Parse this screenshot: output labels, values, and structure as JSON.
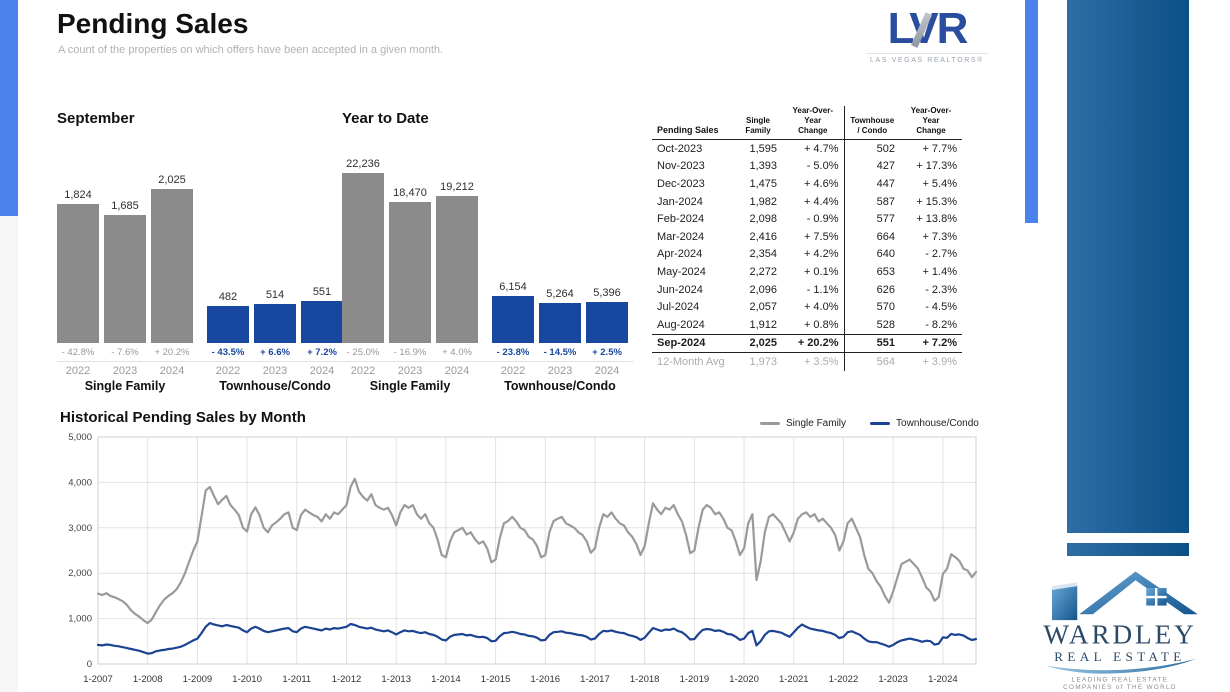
{
  "page": {
    "title": "Pending Sales",
    "subtitle": "A count of the properties on which offers have been accepted in a given month."
  },
  "lvr_logo": {
    "text": "LVR",
    "tagline": "LAS VEGAS REALTORS®"
  },
  "colors": {
    "bar_gray": "#8b8b8b",
    "bar_blue": "#17479e",
    "line_gray": "#9a9a9a",
    "line_blue": "#1b4392",
    "accent_strip": "#4b82ec",
    "rail_gradient_start": "#2d6ea5",
    "rail_gradient_end": "#0b5086"
  },
  "chart_data": [
    {
      "type": "bar",
      "title": "September",
      "categories": [
        "2022",
        "2023",
        "2024"
      ],
      "groups": [
        {
          "label": "Single Family",
          "color": "#8b8b8b",
          "change_style": "gray",
          "values": [
            1824,
            1685,
            2025
          ],
          "changes": [
            "- 42.8%",
            "- 7.6%",
            "+ 20.2%"
          ]
        },
        {
          "label": "Townhouse/Condo",
          "color": "#17479e",
          "change_style": "blue",
          "values": [
            482,
            514,
            551
          ],
          "changes": [
            "- 43.5%",
            "+ 6.6%",
            "+ 7.2%"
          ]
        }
      ]
    },
    {
      "type": "bar",
      "title": "Year to Date",
      "categories": [
        "2022",
        "2023",
        "2024"
      ],
      "groups": [
        {
          "label": "Single Family",
          "color": "#8b8b8b",
          "change_style": "gray",
          "values": [
            22236,
            18470,
            19212
          ],
          "changes": [
            "- 25.0%",
            "- 16.9%",
            "+ 4.0%"
          ]
        },
        {
          "label": "Townhouse/Condo",
          "color": "#17479e",
          "change_style": "blue",
          "values": [
            6154,
            5264,
            5396
          ],
          "changes": [
            "- 23.8%",
            "- 14.5%",
            "+ 2.5%"
          ]
        }
      ]
    },
    {
      "type": "line",
      "title": "Historical Pending Sales by Month",
      "ylim": [
        0,
        5000
      ],
      "yticks": [
        "0",
        "1,000",
        "2,000",
        "3,000",
        "4,000",
        "5,000"
      ],
      "xticks": [
        "1-2007",
        "1-2008",
        "1-2009",
        "1-2010",
        "1-2011",
        "1-2012",
        "1-2013",
        "1-2014",
        "1-2015",
        "1-2016",
        "1-2017",
        "1-2018",
        "1-2019",
        "1-2020",
        "1-2021",
        "1-2022",
        "1-2023",
        "1-2024"
      ],
      "months_start": "2007-01",
      "months_end": "2024-09",
      "grid": true,
      "legend_position": "top-right",
      "series": [
        {
          "name": "Single Family",
          "color": "#9a9a9a",
          "values": [
            1550,
            1520,
            1560,
            1500,
            1470,
            1430,
            1380,
            1300,
            1180,
            1100,
            1040,
            960,
            900,
            980,
            1150,
            1300,
            1420,
            1500,
            1560,
            1650,
            1800,
            2000,
            2250,
            2500,
            2700,
            3250,
            3820,
            3900,
            3700,
            3520,
            3620,
            3700,
            3500,
            3400,
            3280,
            3000,
            2920,
            3300,
            3450,
            3280,
            3000,
            2900,
            3050,
            3120,
            3200,
            3300,
            3340,
            3000,
            2950,
            3280,
            3400,
            3340,
            3280,
            3240,
            3140,
            3300,
            3200,
            3340,
            3300,
            3400,
            3500,
            3900,
            4080,
            3800,
            3680,
            3600,
            3740,
            3500,
            3440,
            3400,
            3440,
            3280,
            3050,
            3340,
            3500,
            3440,
            3500,
            3300,
            3200,
            3300,
            3100,
            3000,
            2740,
            2400,
            2350,
            2700,
            2900,
            2950,
            3000,
            2850,
            2900,
            2750,
            2650,
            2700,
            2540,
            2240,
            2300,
            2760,
            3100,
            3150,
            3240,
            3140,
            3000,
            2950,
            2800,
            2740,
            2600,
            2350,
            2400,
            2900,
            3150,
            3200,
            3240,
            3100,
            3050,
            3000,
            2900,
            2840,
            2700,
            2450,
            2550,
            3000,
            3300,
            3240,
            3340,
            3200,
            3100,
            3050,
            2900,
            2800,
            2640,
            2400,
            2600,
            3100,
            3540,
            3400,
            3300,
            3440,
            3400,
            3500,
            3300,
            3140,
            2840,
            2440,
            2500,
            3000,
            3400,
            3500,
            3440,
            3300,
            3340,
            3200,
            3000,
            2940,
            2700,
            2400,
            2550,
            3100,
            3300,
            1850,
            2250,
            2900,
            3240,
            3300,
            3200,
            3100,
            2900,
            2700,
            2900,
            3200,
            3300,
            3340,
            3240,
            3300,
            3140,
            3200,
            3100,
            3000,
            2840,
            2500,
            2700,
            3100,
            3200,
            3000,
            2800,
            2400,
            2100,
            2000,
            1824,
            1700,
            1500,
            1350,
            1600,
            1900,
            2200,
            2250,
            2300,
            2200,
            2100,
            1900,
            1685,
            1595,
            1393,
            1475,
            1982,
            2098,
            2416,
            2354,
            2272,
            2096,
            2057,
            1912,
            2025
          ]
        },
        {
          "name": "Townhouse/Condo",
          "color": "#1b4392",
          "values": [
            420,
            410,
            430,
            420,
            400,
            390,
            370,
            350,
            330,
            310,
            290,
            260,
            230,
            240,
            280,
            300,
            310,
            330,
            340,
            360,
            380,
            420,
            470,
            520,
            560,
            680,
            820,
            900,
            870,
            850,
            830,
            860,
            840,
            820,
            800,
            740,
            700,
            780,
            820,
            780,
            730,
            700,
            720,
            740,
            760,
            780,
            790,
            720,
            700,
            780,
            820,
            800,
            780,
            760,
            740,
            780,
            760,
            790,
            780,
            800,
            820,
            880,
            860,
            820,
            800,
            780,
            800,
            760,
            740,
            720,
            740,
            700,
            650,
            700,
            740,
            720,
            730,
            700,
            680,
            700,
            660,
            640,
            600,
            540,
            520,
            600,
            640,
            650,
            660,
            630,
            640,
            610,
            590,
            600,
            570,
            500,
            510,
            610,
            680,
            690,
            710,
            690,
            660,
            650,
            620,
            610,
            580,
            520,
            530,
            640,
            700,
            710,
            720,
            690,
            680,
            660,
            640,
            630,
            600,
            540,
            560,
            660,
            730,
            720,
            740,
            710,
            690,
            680,
            640,
            620,
            590,
            530,
            580,
            690,
            790,
            760,
            730,
            760,
            750,
            780,
            730,
            700,
            630,
            540,
            550,
            660,
            750,
            770,
            760,
            730,
            740,
            710,
            660,
            650,
            600,
            530,
            560,
            680,
            730,
            410,
            500,
            640,
            720,
            730,
            710,
            690,
            640,
            600,
            700,
            800,
            870,
            820,
            780,
            760,
            740,
            730,
            700,
            680,
            640,
            570,
            600,
            700,
            720,
            680,
            640,
            560,
            500,
            480,
            482,
            450,
            420,
            380,
            420,
            480,
            520,
            540,
            560,
            540,
            520,
            490,
            514,
            502,
            427,
            447,
            587,
            577,
            664,
            640,
            653,
            626,
            570,
            528,
            551
          ]
        }
      ]
    }
  ],
  "table": {
    "headers": [
      [
        "Pending Sales"
      ],
      [
        "Single",
        "Family"
      ],
      [
        "Year-Over-Year",
        "Change"
      ],
      [
        "Townhouse",
        "/ Condo"
      ],
      [
        "Year-Over-Year",
        "Change"
      ]
    ],
    "rows": [
      [
        "Oct-2023",
        "1,595",
        "+ 4.7%",
        "502",
        "+ 7.7%"
      ],
      [
        "Nov-2023",
        "1,393",
        "- 5.0%",
        "427",
        "+ 17.3%"
      ],
      [
        "Dec-2023",
        "1,475",
        "+ 4.6%",
        "447",
        "+ 5.4%"
      ],
      [
        "Jan-2024",
        "1,982",
        "+ 4.4%",
        "587",
        "+ 15.3%"
      ],
      [
        "Feb-2024",
        "2,098",
        "- 0.9%",
        "577",
        "+ 13.8%"
      ],
      [
        "Mar-2024",
        "2,416",
        "+ 7.5%",
        "664",
        "+ 7.3%"
      ],
      [
        "Apr-2024",
        "2,354",
        "+ 4.2%",
        "640",
        "- 2.7%"
      ],
      [
        "May-2024",
        "2,272",
        "+ 0.1%",
        "653",
        "+ 1.4%"
      ],
      [
        "Jun-2024",
        "2,096",
        "- 1.1%",
        "626",
        "- 2.3%"
      ],
      [
        "Jul-2024",
        "2,057",
        "+ 4.0%",
        "570",
        "- 4.5%"
      ],
      [
        "Aug-2024",
        "1,912",
        "+ 0.8%",
        "528",
        "- 8.2%"
      ],
      [
        "Sep-2024",
        "2,025",
        "+ 20.2%",
        "551",
        "+ 7.2%"
      ]
    ],
    "highlight_row_index": 11,
    "avg_row": [
      "12-Month Avg",
      "1,973",
      "+ 3.5%",
      "564",
      "+ 3.9%"
    ]
  },
  "wardley_logo": {
    "name": "WARDLEY",
    "subtitle": "REAL ESTATE",
    "tagline1": "LEADING REAL ESTATE",
    "tagline2": "COMPANIES of THE WORLD"
  }
}
